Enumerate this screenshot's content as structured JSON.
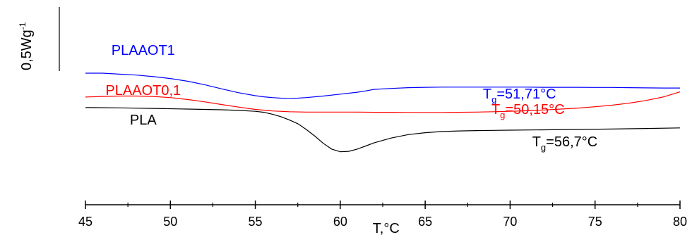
{
  "chart_data": {
    "type": "line",
    "title": "",
    "xlabel": "T,°C",
    "ylabel": "",
    "xlim": [
      45,
      80
    ],
    "x_ticks": [
      45,
      50,
      55,
      60,
      65,
      70,
      75,
      80
    ],
    "scale_bar": {
      "base": "0,5Wg",
      "exponent": "-1"
    },
    "grid": false,
    "series": [
      {
        "name": "PLAAOT1",
        "color": "#0000ff",
        "annotation": {
          "base": "T",
          "sub": "g",
          "rest": "=51,71°C"
        },
        "points": [
          [
            45,
            0.69
          ],
          [
            46,
            0.69
          ],
          [
            47,
            0.685
          ],
          [
            48,
            0.68
          ],
          [
            49,
            0.672
          ],
          [
            50,
            0.662
          ],
          [
            51,
            0.648
          ],
          [
            52,
            0.63
          ],
          [
            53,
            0.608
          ],
          [
            54,
            0.588
          ],
          [
            55,
            0.572
          ],
          [
            55.5,
            0.566
          ],
          [
            56,
            0.562
          ],
          [
            56.5,
            0.559
          ],
          [
            57,
            0.558
          ],
          [
            57.5,
            0.559
          ],
          [
            58,
            0.562
          ],
          [
            59,
            0.57
          ],
          [
            60,
            0.58
          ],
          [
            61,
            0.59
          ],
          [
            61.5,
            0.597
          ],
          [
            62,
            0.605
          ],
          [
            63,
            0.61
          ],
          [
            64,
            0.614
          ],
          [
            65,
            0.616
          ],
          [
            66,
            0.617
          ],
          [
            67,
            0.617
          ],
          [
            68,
            0.617
          ],
          [
            69,
            0.617
          ],
          [
            70,
            0.617
          ],
          [
            71,
            0.617
          ],
          [
            72,
            0.616
          ],
          [
            73,
            0.616
          ],
          [
            74,
            0.616
          ],
          [
            75,
            0.615
          ],
          [
            76,
            0.615
          ],
          [
            77,
            0.614
          ],
          [
            78,
            0.613
          ],
          [
            79,
            0.612
          ],
          [
            80,
            0.612
          ]
        ]
      },
      {
        "name": "PLAAOT0,1",
        "color": "#ff0000",
        "annotation": {
          "base": "T",
          "sub": "g",
          "rest": "=50,15°C"
        },
        "points": [
          [
            45,
            0.565
          ],
          [
            46,
            0.568
          ],
          [
            47,
            0.57
          ],
          [
            48,
            0.57
          ],
          [
            49,
            0.568
          ],
          [
            50,
            0.562
          ],
          [
            51,
            0.552
          ],
          [
            52,
            0.54
          ],
          [
            53,
            0.526
          ],
          [
            54,
            0.512
          ],
          [
            55,
            0.5
          ],
          [
            56,
            0.492
          ],
          [
            57,
            0.488
          ],
          [
            58,
            0.486
          ],
          [
            59,
            0.486
          ],
          [
            60,
            0.486
          ],
          [
            61,
            0.486
          ],
          [
            62,
            0.485
          ],
          [
            63,
            0.485
          ],
          [
            64,
            0.484
          ],
          [
            65,
            0.484
          ],
          [
            66,
            0.484
          ],
          [
            67,
            0.485
          ],
          [
            68,
            0.486
          ],
          [
            69,
            0.488
          ],
          [
            70,
            0.49
          ],
          [
            71,
            0.493
          ],
          [
            72,
            0.497
          ],
          [
            73,
            0.502
          ],
          [
            74,
            0.507
          ],
          [
            75,
            0.514
          ],
          [
            76,
            0.522
          ],
          [
            77,
            0.533
          ],
          [
            78,
            0.547
          ],
          [
            79,
            0.565
          ],
          [
            80,
            0.592
          ]
        ]
      },
      {
        "name": "PLA",
        "color": "#000000",
        "annotation": {
          "base": "T",
          "sub": "g",
          "rest": "=56,7°C"
        },
        "points": [
          [
            45,
            0.51
          ],
          [
            47,
            0.508
          ],
          [
            49,
            0.505
          ],
          [
            51,
            0.502
          ],
          [
            53,
            0.498
          ],
          [
            54,
            0.495
          ],
          [
            55,
            0.49
          ],
          [
            55.5,
            0.485
          ],
          [
            56,
            0.475
          ],
          [
            56.5,
            0.462
          ],
          [
            57,
            0.445
          ],
          [
            57.5,
            0.425
          ],
          [
            58,
            0.395
          ],
          [
            58.5,
            0.36
          ],
          [
            59,
            0.322
          ],
          [
            59.5,
            0.292
          ],
          [
            60,
            0.278
          ],
          [
            60.5,
            0.28
          ],
          [
            61,
            0.292
          ],
          [
            61.5,
            0.308
          ],
          [
            62,
            0.325
          ],
          [
            63,
            0.35
          ],
          [
            64,
            0.368
          ],
          [
            65,
            0.378
          ],
          [
            66,
            0.384
          ],
          [
            67,
            0.387
          ],
          [
            68,
            0.389
          ],
          [
            69,
            0.39
          ],
          [
            70,
            0.391
          ],
          [
            72,
            0.393
          ],
          [
            74,
            0.395
          ],
          [
            76,
            0.397
          ],
          [
            78,
            0.4
          ],
          [
            80,
            0.403
          ]
        ]
      }
    ]
  }
}
